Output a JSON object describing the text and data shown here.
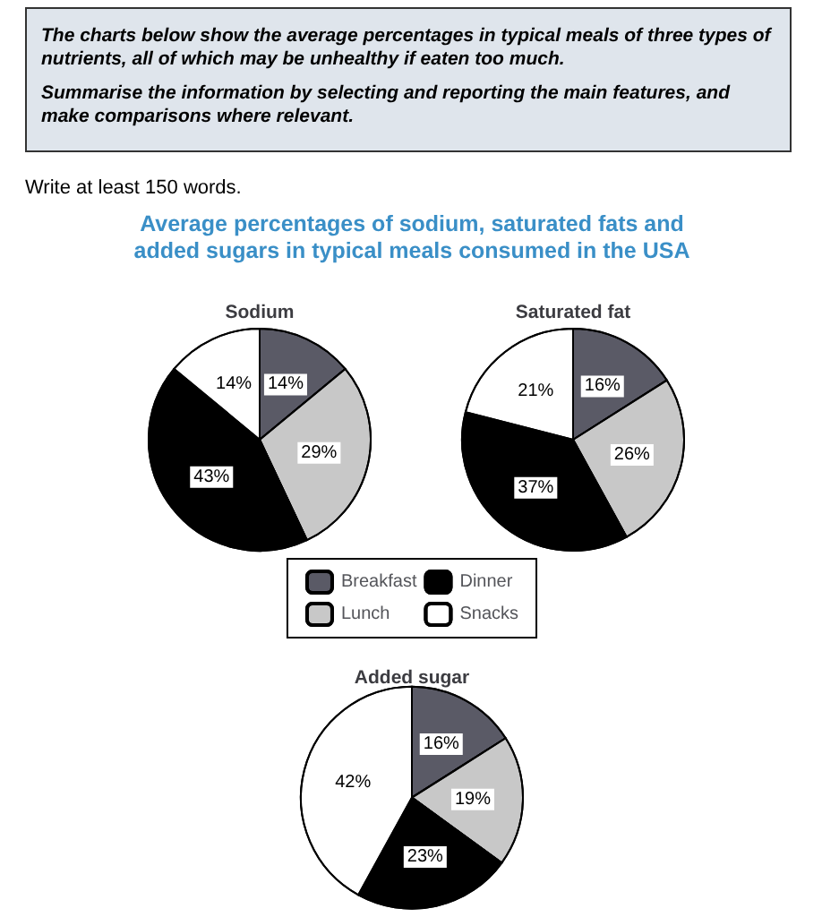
{
  "chart_data": [
    {
      "type": "pie",
      "title": "Sodium",
      "categories": [
        null,
        null,
        null,
        null
      ],
      "values": [
        14,
        29,
        43,
        14
      ],
      "value_labels": [
        "14%",
        "29%",
        "43%",
        "14%"
      ],
      "colors": [
        "#5a5a66",
        "#c8c8c8",
        "#000000",
        "#ffffff"
      ],
      "annotations": [
        "The charts below show the average percentages in typical meals of three types of nutrients, all of which may be unhealthy if eaten too much.",
        "Summarise the information by selecting and reporting the main features, and make comparisons where relevant.",
        "Write at least 150 words.",
        "Average percentages of sodium, saturated fats and added sugars in typical meals consumed in the USA"
      ]
    },
    {
      "type": "pie",
      "title": "Saturated fat",
      "categories": [
        null,
        null,
        null,
        null
      ],
      "values": [
        16,
        26,
        37,
        21
      ],
      "value_labels": [
        "16%",
        "26%",
        "37%",
        "21%"
      ],
      "colors": [
        "#5a5a66",
        "#c8c8c8",
        "#000000",
        "#ffffff"
      ]
    },
    {
      "type": "pie",
      "title": "Added sugar",
      "categories": [
        "Breakfast",
        "Lunch",
        "Dinner",
        "Snacks"
      ],
      "values": [
        16,
        19,
        23,
        42
      ],
      "value_labels": [
        "16%",
        "19%",
        "23%",
        "42%"
      ],
      "colors": [
        "#5a5a66",
        "#c8c8c8",
        "#000000",
        "#ffffff"
      ],
      "legend": "top"
    }
  ]
}
